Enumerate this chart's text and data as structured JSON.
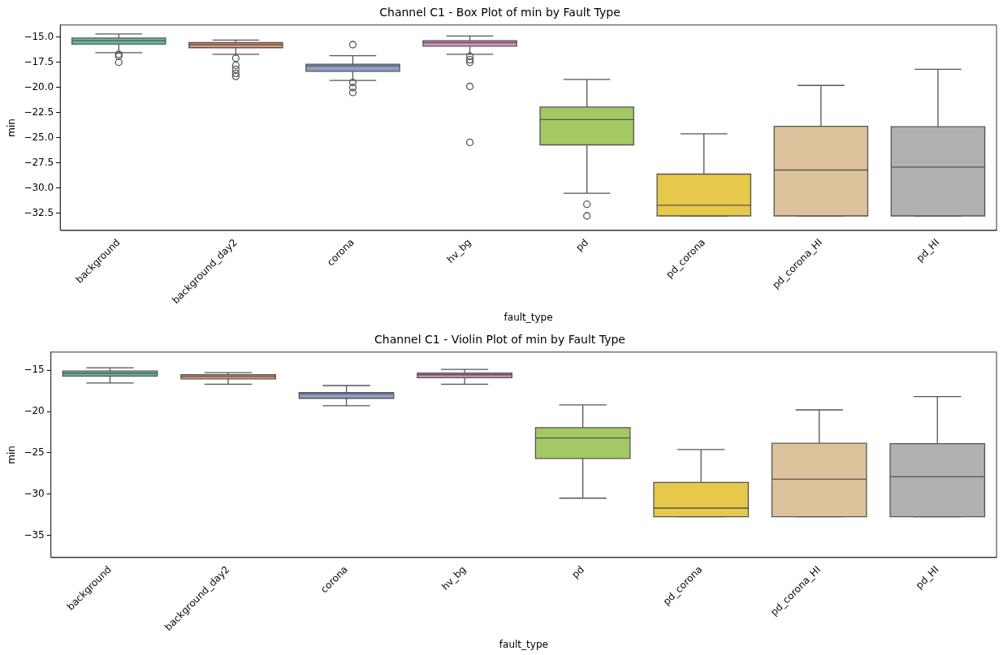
{
  "chart_data": [
    {
      "type": "box",
      "title": "Channel C1 - Box Plot of min by Fault Type",
      "xlabel": "fault_type",
      "ylabel": "min",
      "grid": false,
      "categories": [
        "background",
        "background_day2",
        "corona",
        "hv_bg",
        "pd",
        "pd_corona",
        "pd_corona_HI",
        "pd_HI"
      ],
      "colors": [
        "#6bba9d",
        "#ef9670",
        "#8e9dc6",
        "#dc90c0",
        "#a3c864",
        "#e6c84a",
        "#dcc39c",
        "#b0b0b0"
      ],
      "boxes": [
        {
          "low": -16.55,
          "q1": -15.7,
          "median": -15.35,
          "q3": -15.1,
          "high": -14.7,
          "outliers": [
            -16.7,
            -16.9,
            -17.5
          ]
        },
        {
          "low": -16.7,
          "q1": -16.05,
          "median": -15.75,
          "q3": -15.55,
          "high": -15.3,
          "outliers": [
            -17.1,
            -17.8,
            -18.2,
            -18.6,
            -18.9
          ]
        },
        {
          "low": -19.3,
          "q1": -18.4,
          "median": -17.85,
          "q3": -17.7,
          "high": -16.85,
          "outliers": [
            -15.75,
            -19.5,
            -20.0,
            -20.5
          ]
        },
        {
          "low": -16.7,
          "q1": -15.9,
          "median": -15.55,
          "q3": -15.35,
          "high": -14.9,
          "outliers": [
            -16.9,
            -17.25,
            -17.5,
            -19.9,
            -25.45
          ]
        },
        {
          "low": -30.5,
          "q1": -25.7,
          "median": -23.2,
          "q3": -21.95,
          "high": -19.2,
          "outliers": [
            -31.6,
            -32.75
          ]
        },
        {
          "low": -32.75,
          "q1": -32.75,
          "median": -31.7,
          "q3": -28.6,
          "high": -24.6
        },
        {
          "low": -32.75,
          "q1": -32.75,
          "median": -28.2,
          "q3": -23.85,
          "high": -19.8
        },
        {
          "low": -32.75,
          "q1": -32.75,
          "median": -27.9,
          "q3": -23.9,
          "high": -18.2
        }
      ],
      "ylim": [
        -34.2,
        -13.8
      ],
      "yticks": [
        {
          "value": -15,
          "label": "−15.0"
        },
        {
          "value": -17.5,
          "label": "−17.5"
        },
        {
          "value": -20,
          "label": "−20.0"
        },
        {
          "value": -22.5,
          "label": "−22.5"
        },
        {
          "value": -25,
          "label": "−25.0"
        },
        {
          "value": -27.5,
          "label": "−27.5"
        },
        {
          "value": -30,
          "label": "−30.0"
        },
        {
          "value": -32.5,
          "label": "−32.5"
        }
      ]
    },
    {
      "type": "box",
      "title": "Channel C1 - Violin Plot of min by Fault Type",
      "xlabel": "fault_type",
      "ylabel": "min",
      "grid": false,
      "categories": [
        "background",
        "background_day2",
        "corona",
        "hv_bg",
        "pd",
        "pd_corona",
        "pd_corona_HI",
        "pd_HI"
      ],
      "colors": [
        "#6bba9d",
        "#ef9670",
        "#8e9dc6",
        "#dc90c0",
        "#a3c864",
        "#e6c84a",
        "#dcc39c",
        "#b0b0b0"
      ],
      "boxes": [
        {
          "low": -16.55,
          "q1": -15.7,
          "median": -15.35,
          "q3": -15.1,
          "high": -14.7
        },
        {
          "low": -16.7,
          "q1": -16.05,
          "median": -15.75,
          "q3": -15.55,
          "high": -15.3
        },
        {
          "low": -19.3,
          "q1": -18.4,
          "median": -17.85,
          "q3": -17.7,
          "high": -16.85
        },
        {
          "low": -16.7,
          "q1": -15.9,
          "median": -15.55,
          "q3": -15.35,
          "high": -14.9
        },
        {
          "low": -30.5,
          "q1": -25.7,
          "median": -23.2,
          "q3": -21.95,
          "high": -19.2
        },
        {
          "low": -32.75,
          "q1": -32.75,
          "median": -31.7,
          "q3": -28.6,
          "high": -24.6
        },
        {
          "low": -32.75,
          "q1": -32.75,
          "median": -28.2,
          "q3": -23.85,
          "high": -19.8
        },
        {
          "low": -32.75,
          "q1": -32.75,
          "median": -27.9,
          "q3": -23.9,
          "high": -18.2
        }
      ],
      "ylim": [
        -37.7,
        -12.8
      ],
      "yticks": [
        {
          "value": -15,
          "label": "−15"
        },
        {
          "value": -20,
          "label": "−20"
        },
        {
          "value": -25,
          "label": "−25"
        },
        {
          "value": -30,
          "label": "−30"
        },
        {
          "value": -35,
          "label": "−35"
        }
      ]
    }
  ]
}
